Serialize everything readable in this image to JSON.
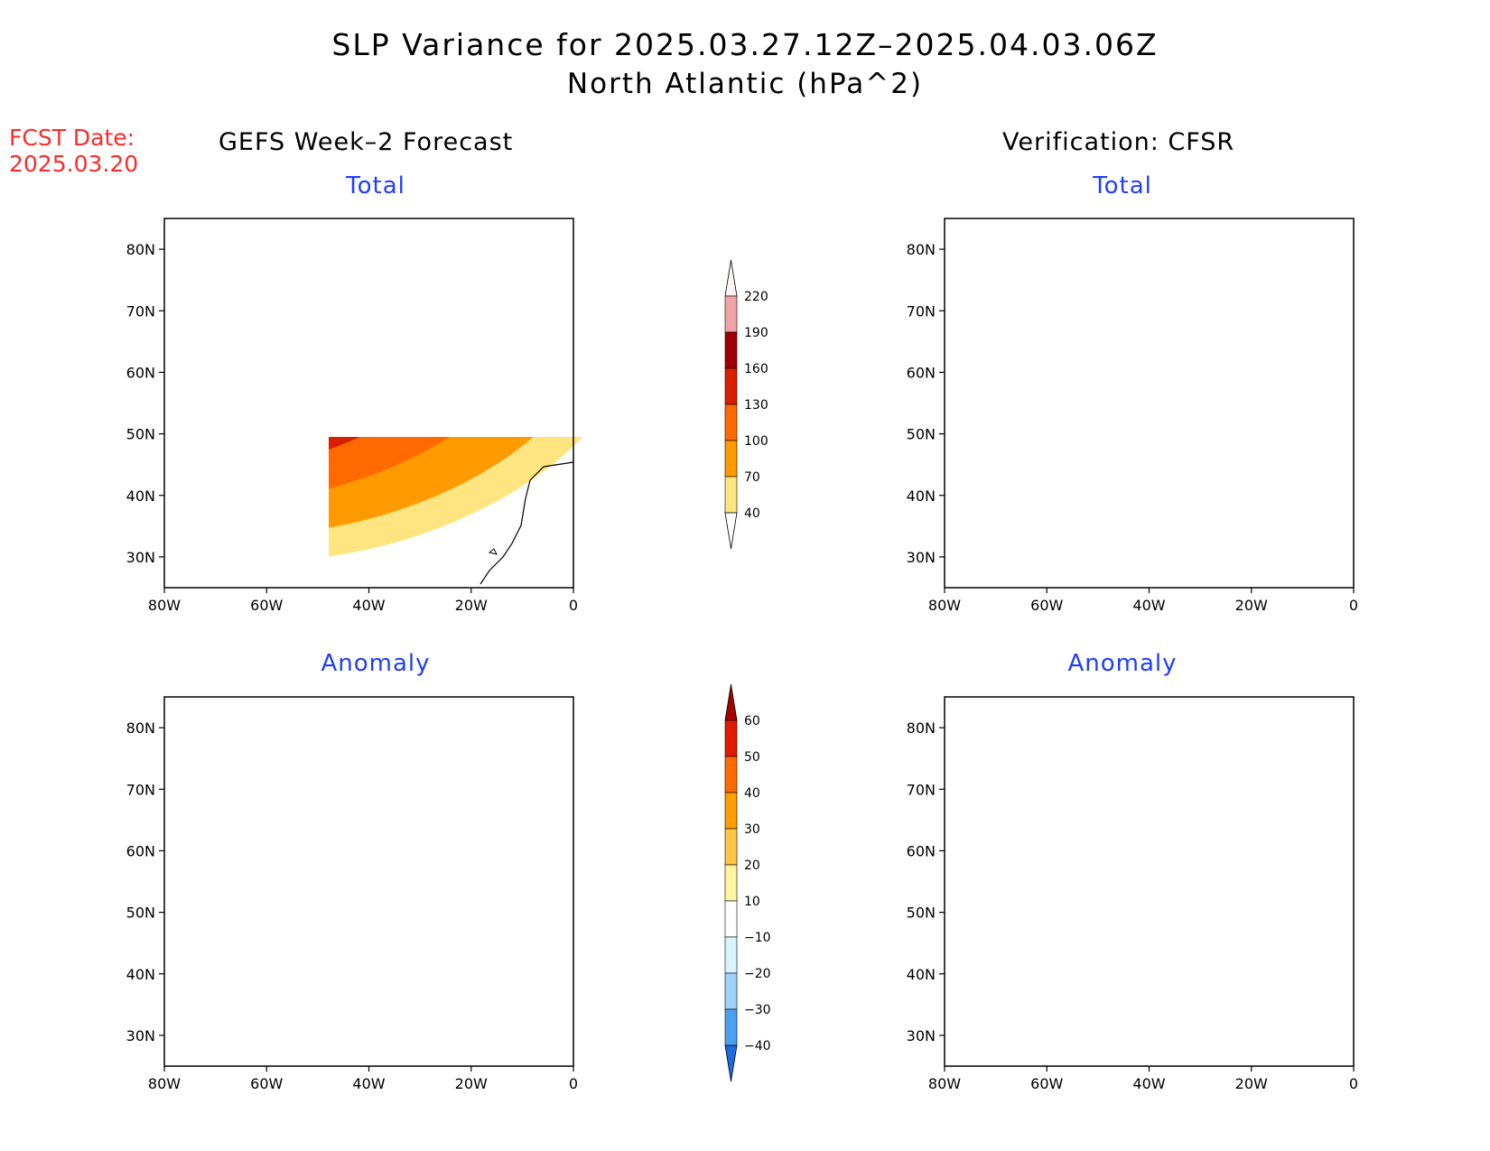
{
  "title": "SLP Variance for 2025.03.27.12Z–2025.04.03.06Z",
  "subtitle": "North Atlantic (hPa^2)",
  "fcst_label_line1": "FCST Date:",
  "fcst_label_line2": "2025.03.20",
  "columns": {
    "left": "GEFS Week–2 Forecast",
    "right": "Verification: CFSR"
  },
  "panels": {
    "top_left": "Total",
    "top_right": "Total",
    "bottom_left": "Anomaly",
    "bottom_right": "Anomaly"
  },
  "axes": {
    "lon_labels": [
      "80W",
      "60W",
      "40W",
      "20W",
      "0"
    ],
    "lat_labels": [
      "80N",
      "70N",
      "60N",
      "50N",
      "40N",
      "30N"
    ]
  },
  "colorbar_total": {
    "levels": [
      "220",
      "190",
      "160",
      "130",
      "100",
      "70",
      "40"
    ],
    "colors": [
      "#fde4e4",
      "#f0a3a6",
      "#a10000",
      "#d91f00",
      "#ff6a00",
      "#ff9a00",
      "#ffe57f"
    ]
  },
  "colorbar_anomaly": {
    "levels": [
      "60",
      "50",
      "40",
      "30",
      "20",
      "10",
      "−10",
      "−20",
      "−30",
      "−40"
    ],
    "colors": [
      "#a50000",
      "#e11a00",
      "#ff6a00",
      "#ff9e00",
      "#ffc645",
      "#fff59e",
      "#ffffff",
      "#d8f4ff",
      "#9ed2f8",
      "#4aa0f0",
      "#1d6be0"
    ]
  }
}
